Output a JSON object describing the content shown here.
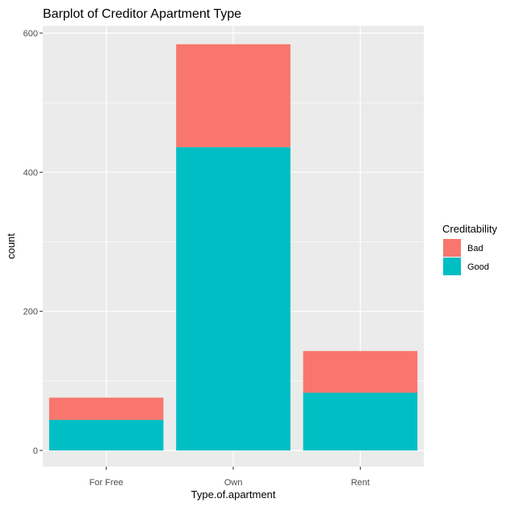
{
  "chart_data": {
    "type": "bar",
    "stacked": true,
    "title": "Barplot of Creditor Apartment Type",
    "xlabel": "Type.of.apartment",
    "ylabel": "count",
    "categories": [
      "For Free",
      "Own",
      "Rent"
    ],
    "series": [
      {
        "name": "Good",
        "values": [
          44,
          436,
          83
        ],
        "color": "#00BFC4"
      },
      {
        "name": "Bad",
        "values": [
          32,
          148,
          60
        ],
        "color": "#F8766D"
      }
    ],
    "yticks": [
      0,
      200,
      400,
      600
    ],
    "yticks_labels": [
      "0",
      "200",
      "400",
      "600"
    ],
    "ylim": [
      0,
      600
    ],
    "grid": true,
    "legend": {
      "title": "Creditability",
      "position": "right",
      "entries": [
        {
          "label": "Bad",
          "color": "#F8766D"
        },
        {
          "label": "Good",
          "color": "#00BFC4"
        }
      ]
    },
    "panel_background": "#EBEBEB",
    "grid_color": "#FFFFFF"
  }
}
